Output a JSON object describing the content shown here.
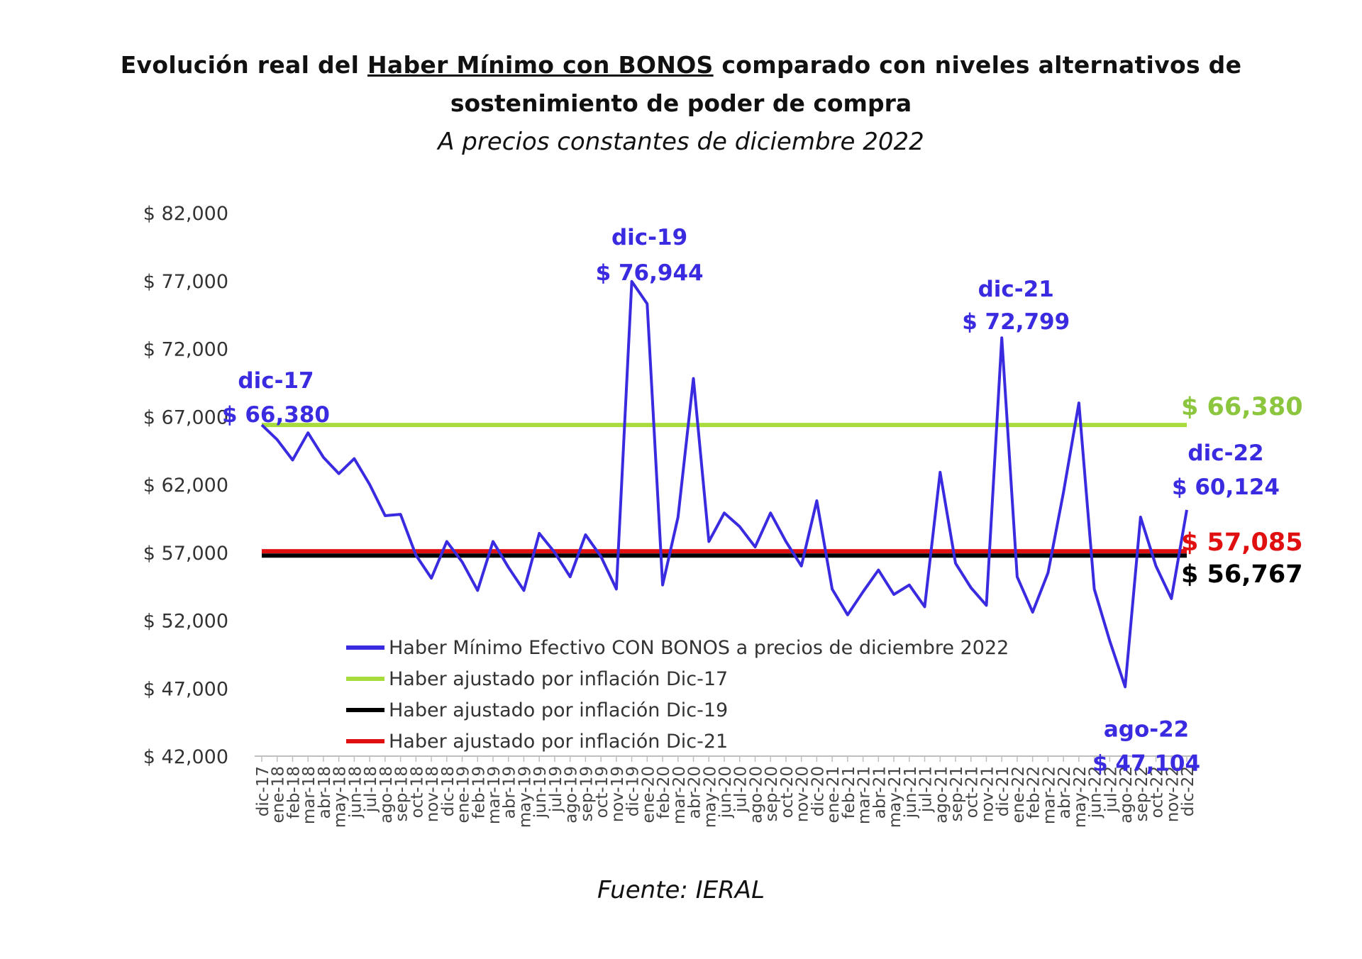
{
  "title": {
    "line1_pre": "Evolución real del ",
    "line1_underlined": "Haber Mínimo con BONOS",
    "line1_post": " comparado con niveles alternativos de",
    "line2": "sostenimiento de poder de compra",
    "subtitle": "A precios constantes de diciembre 2022"
  },
  "source": "Fuente: IERAL",
  "chart_data": {
    "type": "line",
    "ylim": [
      42000,
      82000
    ],
    "y_ticks": [
      42000,
      47000,
      52000,
      57000,
      62000,
      67000,
      72000,
      77000,
      82000
    ],
    "y_tick_labels": [
      "$ 42,000",
      "$ 47,000",
      "$ 52,000",
      "$ 57,000",
      "$ 62,000",
      "$ 67,000",
      "$ 72,000",
      "$ 77,000",
      "$ 82,000"
    ],
    "grid": false,
    "legend_position": "bottom-center",
    "categories": [
      "dic-17",
      "ene-18",
      "feb-18",
      "mar-18",
      "abr-18",
      "may-18",
      "jun-18",
      "jul-18",
      "ago-18",
      "sep-18",
      "oct-18",
      "nov-18",
      "dic-18",
      "ene-19",
      "feb-19",
      "mar-19",
      "abr-19",
      "may-19",
      "jun-19",
      "jul-19",
      "ago-19",
      "sep-19",
      "oct-19",
      "nov-19",
      "dic-19",
      "ene-20",
      "feb-20",
      "mar-20",
      "abr-20",
      "may-20",
      "jun-20",
      "jul-20",
      "ago-20",
      "sep-20",
      "oct-20",
      "nov-20",
      "dic-20",
      "ene-21",
      "feb-21",
      "mar-21",
      "abr-21",
      "may-21",
      "jun-21",
      "jul-21",
      "ago-21",
      "sep-21",
      "oct-21",
      "nov-21",
      "dic-21",
      "ene-22",
      "feb-22",
      "mar-22",
      "abr-22",
      "may-22",
      "jun-22",
      "jul-22",
      "ago-22",
      "sep-22",
      "oct-22",
      "nov-22",
      "dic-22"
    ],
    "series": [
      {
        "name": "Haber Mínimo Efectivo CON BONOS a precios de diciembre 2022",
        "color": "#3a2be0",
        "values": [
          66380,
          65300,
          63800,
          65800,
          64000,
          62800,
          63900,
          62000,
          59700,
          59800,
          56800,
          55100,
          57800,
          56300,
          54200,
          57800,
          55900,
          54200,
          58400,
          57000,
          55200,
          58300,
          56700,
          54300,
          76944,
          75300,
          54600,
          59600,
          69800,
          57800,
          59900,
          58900,
          57400,
          59900,
          57800,
          56000,
          60800,
          54300,
          52400,
          54100,
          55700,
          53900,
          54600,
          53000,
          62900,
          56200,
          54400,
          53100,
          72799,
          55200,
          52600,
          55500,
          61400,
          68000,
          54300,
          50500,
          47104,
          59600,
          56000,
          53600,
          60124
        ]
      },
      {
        "name": "Haber ajustado por inflación Dic-17",
        "color": "#a8dc3c",
        "constant": 66380
      },
      {
        "name": "Haber ajustado por inflación Dic-19",
        "color": "#000000",
        "constant": 56767
      },
      {
        "name": "Haber ajustado por inflación Dic-21",
        "color": "#e01010",
        "constant": 57085
      }
    ],
    "annotations": [
      {
        "month": "dic-17",
        "value": "$ 66,380",
        "index": 0,
        "color": "#3a2be0"
      },
      {
        "month": "dic-19",
        "value": "$ 76,944",
        "index": 24,
        "color": "#3a2be0"
      },
      {
        "month": "dic-21",
        "value": "$ 72,799",
        "index": 48,
        "color": "#3a2be0"
      },
      {
        "month": "ago-22",
        "value": "$ 47,104",
        "index": 56,
        "color": "#3a2be0"
      },
      {
        "month": "dic-22",
        "value": "$ 60,124",
        "index": 60,
        "color": "#3a2be0"
      }
    ],
    "end_labels": [
      {
        "text": "$ 66,380",
        "color": "#8cc63f"
      },
      {
        "text": "$ 57,085",
        "color": "#e01010"
      },
      {
        "text": "$ 56,767",
        "color": "#000000"
      }
    ]
  }
}
